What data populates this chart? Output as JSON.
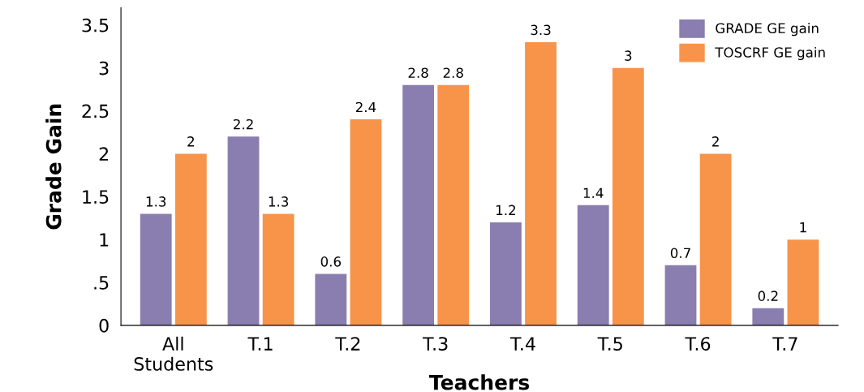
{
  "chart_data": {
    "type": "bar",
    "xlabel": "Teachers",
    "ylabel": "Grade Gain",
    "categories": [
      "All\nStudents",
      "T.1",
      "T.2",
      "T.3",
      "T.4",
      "T.5",
      "T.6",
      "T.7"
    ],
    "series": [
      {
        "name": "GRADE GE gain",
        "color": "#8a7daf",
        "values": [
          1.3,
          2.2,
          0.6,
          2.8,
          1.2,
          1.4,
          0.7,
          0.2
        ]
      },
      {
        "name": "TOSCRF GE gain",
        "color": "#f7944a",
        "values": [
          2,
          1.3,
          2.4,
          2.8,
          3.3,
          3,
          2,
          1
        ]
      }
    ],
    "ylim": [
      0,
      3.7
    ],
    "yticks": [
      0,
      {
        "value": 0.5,
        "label": ".5"
      },
      1,
      1.5,
      2,
      2.5,
      3,
      3.5
    ],
    "data_labels": true,
    "legend": "top right",
    "grid": false
  }
}
